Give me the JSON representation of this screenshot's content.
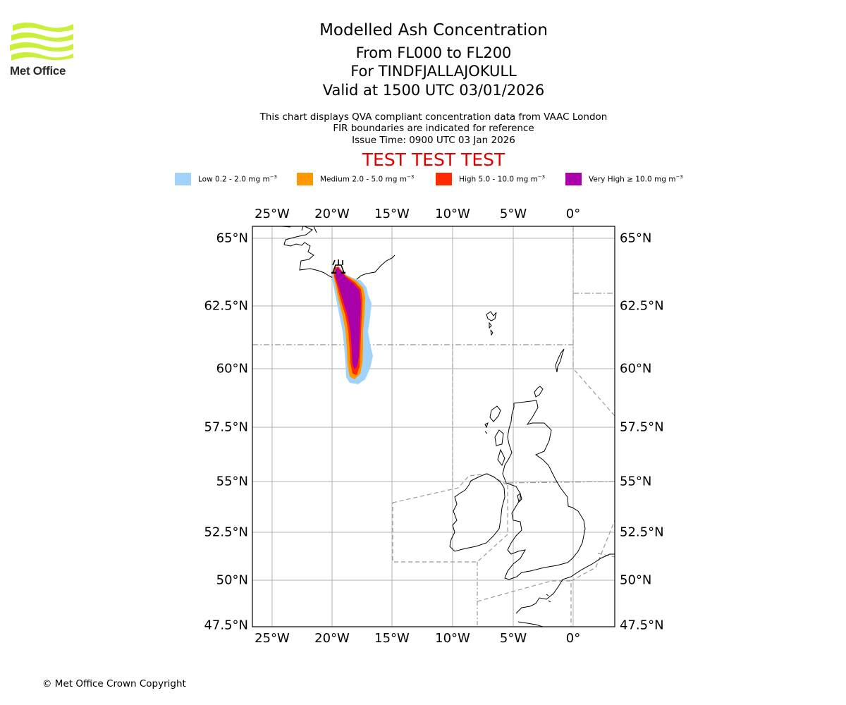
{
  "logo": {
    "text": "Met Office",
    "color": "#c8f03a"
  },
  "header": {
    "title": "Modelled Ash Concentration",
    "level_range": "From FL000 to FL200",
    "volcano": "For TINDFJALLAJOKULL",
    "valid_time": "Valid at 1500 UTC 03/01/2026",
    "description": "This chart displays QVA compliant concentration data from VAAC London",
    "fir_note": "FIR boundaries are indicated for reference",
    "issue_time": "Issue Time: 0900 UTC 03 Jan 2026",
    "test_banner": "TEST TEST TEST"
  },
  "legend": [
    {
      "label": "Low 0.2 - 2.0 mg m",
      "exp": "−3",
      "color": "#a0d2fa"
    },
    {
      "label": "Medium 2.0 - 5.0 mg m",
      "exp": "−3",
      "color": "#ff9800"
    },
    {
      "label": "High 5.0 - 10.0 mg m",
      "exp": "−3",
      "color": "#ff2a00"
    },
    {
      "label": "Very High  ≥  10.0 mg m",
      "exp": "−3",
      "color": "#aa00aa"
    }
  ],
  "axes": {
    "lon_ticks": [
      "25°W",
      "20°W",
      "15°W",
      "10°W",
      "5°W",
      "0°"
    ],
    "lat_ticks": [
      "65°N",
      "62.5°N",
      "60°N",
      "57.5°N",
      "55°N",
      "52.5°N",
      "50°N",
      "47.5°N"
    ]
  },
  "map": {
    "volcano_marker": "volcano-icon",
    "grid_color": "#b0b0b0",
    "fir_color": "#999999"
  },
  "footer": {
    "copyright": "© Met Office Crown Copyright"
  }
}
